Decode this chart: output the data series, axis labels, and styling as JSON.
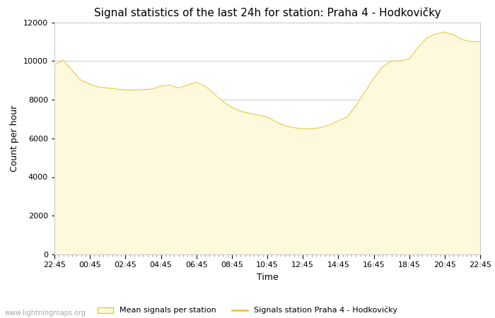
{
  "title": "Signal statistics of the last 24h for station: Praha 4 - Hodkovičky",
  "xlabel": "Time",
  "ylabel": "Count per hour",
  "xlim_labels": [
    "22:45",
    "00:45",
    "02:45",
    "04:45",
    "06:45",
    "08:45",
    "10:45",
    "12:45",
    "14:45",
    "16:45",
    "18:45",
    "20:45",
    "22:45"
  ],
  "ylim": [
    0,
    12000
  ],
  "yticks": [
    0,
    2000,
    4000,
    6000,
    8000,
    10000,
    12000
  ],
  "fill_color": "#FEF9DC",
  "fill_edge_color": "#E8C840",
  "line_color": "#E8C840",
  "background_color": "#ffffff",
  "grid_color": "#cccccc",
  "title_fontsize": 11,
  "axis_fontsize": 9,
  "tick_fontsize": 8,
  "watermark": "www.lightningmaps.org",
  "legend_fill_label": "Mean signals per station",
  "legend_line_label": "Signals station Praha 4 - Hodkovičky",
  "x_values": [
    0,
    1,
    2,
    3,
    4,
    5,
    6,
    7,
    8,
    9,
    10,
    11,
    12,
    13,
    14,
    15,
    16,
    17,
    18,
    19,
    20,
    21,
    22,
    23,
    24,
    25,
    26,
    27,
    28,
    29,
    30,
    31,
    32,
    33,
    34,
    35,
    36,
    37,
    38,
    39,
    40,
    41,
    42,
    43,
    44,
    45,
    46,
    47,
    48
  ],
  "y_values": [
    9800,
    10050,
    9500,
    9000,
    8800,
    8650,
    8600,
    8550,
    8500,
    8500,
    8520,
    8550,
    8700,
    8750,
    8600,
    8750,
    8900,
    8700,
    8300,
    7900,
    7600,
    7400,
    7300,
    7200,
    7100,
    6850,
    6650,
    6550,
    6500,
    6500,
    6550,
    6700,
    6900,
    7100,
    7700,
    8400,
    9100,
    9700,
    10000,
    10000,
    10100,
    10700,
    11200,
    11400,
    11500,
    11350,
    11100,
    11000,
    11000
  ]
}
